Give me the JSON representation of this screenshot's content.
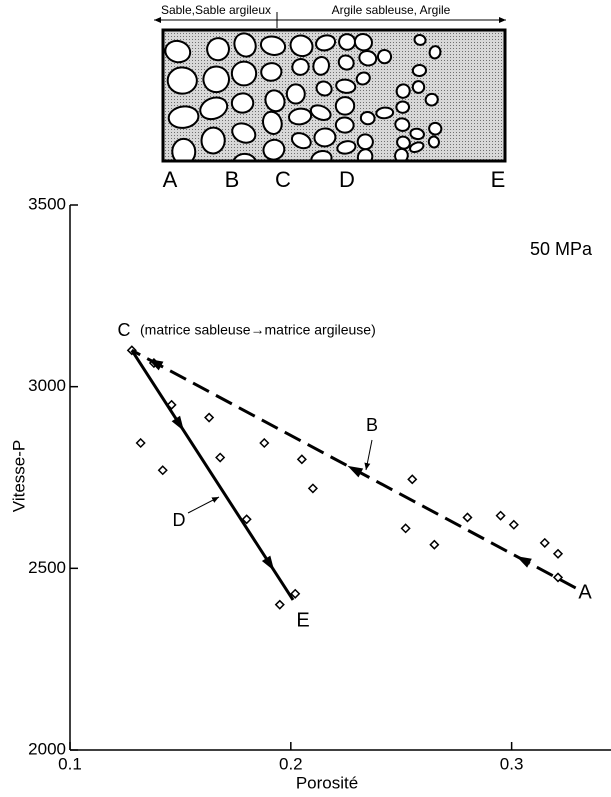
{
  "diagram": {
    "labels": [
      "Sable,Sable argileux",
      "Argile sableuse, Argile"
    ],
    "letters": [
      "A",
      "B",
      "C",
      "D",
      "E"
    ]
  },
  "chart_data": {
    "type": "scatter",
    "x_label": "Porosité",
    "y_label": "Vitesse-P",
    "xlim": [
      0.1,
      0.345
    ],
    "ylim": [
      2000,
      3500
    ],
    "xticks": [
      0.1,
      0.2,
      0.3
    ],
    "yticks": [
      2000,
      2500,
      3000,
      3500
    ],
    "series": [
      {
        "color": "#000000",
        "marker": "diamond",
        "x": [
          0.128,
          0.138,
          0.132,
          0.146,
          0.163,
          0.142,
          0.168,
          0.188,
          0.205,
          0.21,
          0.18,
          0.202,
          0.195,
          0.255,
          0.252,
          0.265,
          0.28,
          0.295,
          0.301,
          0.315,
          0.321,
          0.321
        ],
        "values": [
          3100,
          3065,
          2845,
          2950,
          2915,
          2770,
          2805,
          2845,
          2800,
          2720,
          2635,
          2430,
          2400,
          2745,
          2610,
          2565,
          2640,
          2645,
          2620,
          2570,
          2540,
          2475
        ]
      },
      {
        "color": "#000000",
        "style": "dashed",
        "x": [
          0.329,
          0.128
        ],
        "values": [
          2446,
          3100
        ]
      },
      {
        "color": "#000000",
        "style": "solid",
        "x": [
          0.128,
          0.201
        ],
        "values": [
          3100,
          2413
        ]
      }
    ],
    "annotations": [
      "A",
      "B",
      "C",
      "D",
      "E",
      "(matrice sableuse→matrice argileuse)",
      "50 MPa"
    ]
  }
}
